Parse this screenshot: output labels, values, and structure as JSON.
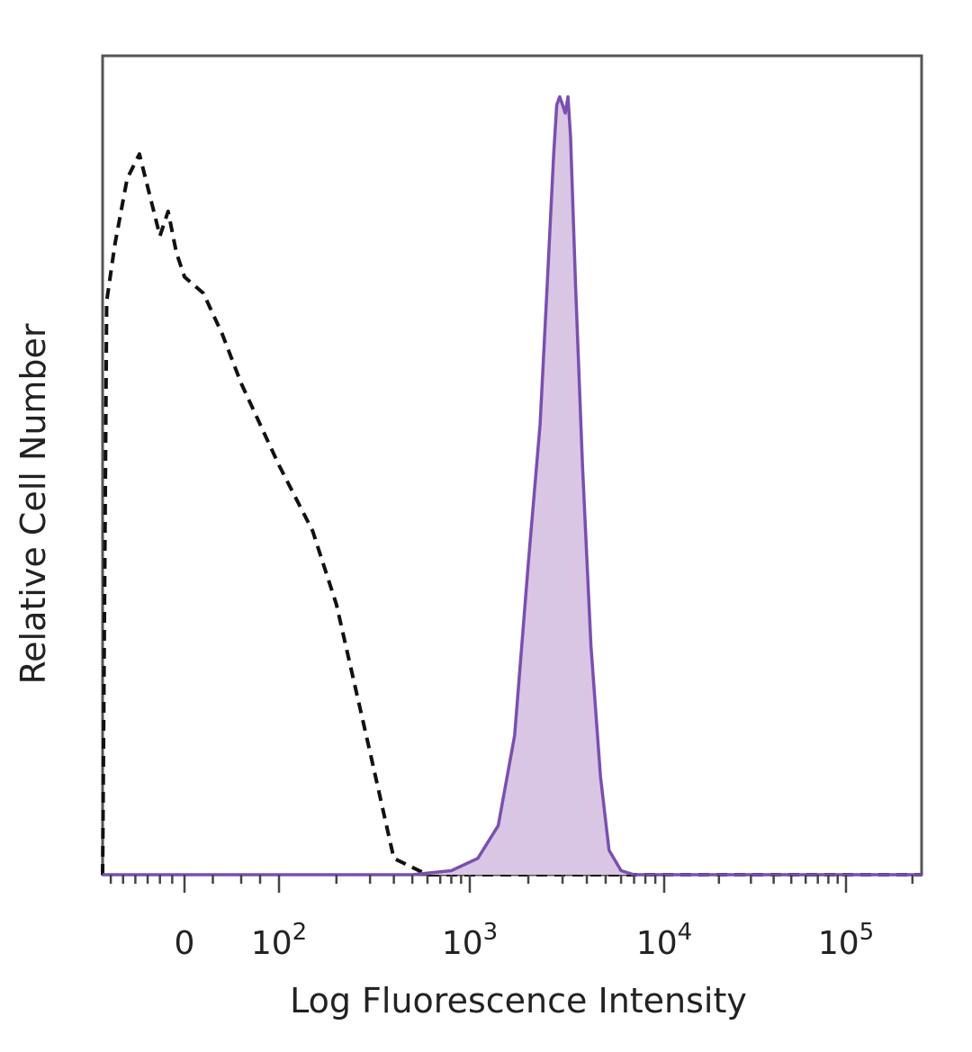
{
  "chart_data": {
    "type": "area",
    "title": "",
    "xlabel": "Log Fluorescence Intensity",
    "ylabel": "Relative Cell Number",
    "x_scale": "biexponential",
    "xlim": [
      -200,
      220000
    ],
    "ylim": [
      0,
      100
    ],
    "grid": false,
    "legend": "none",
    "x_ticks": [
      {
        "value": 0,
        "label": "0"
      },
      {
        "value": 100,
        "base": "10",
        "exp": "2"
      },
      {
        "value": 1000,
        "base": "10",
        "exp": "3"
      },
      {
        "value": 10000,
        "base": "10",
        "exp": "4"
      },
      {
        "value": 100000,
        "base": "10",
        "exp": "5"
      }
    ],
    "series": [
      {
        "style": "dashed",
        "color": "#111111",
        "fill": false,
        "x": [
          -200,
          -190,
          -170,
          -140,
          -110,
          -80,
          -60,
          -40,
          -20,
          0,
          20,
          40,
          60,
          80,
          100,
          150,
          200,
          300,
          400,
          600,
          1000,
          3000,
          10000,
          100000,
          220000
        ],
        "y": [
          0,
          70,
          77,
          85,
          88,
          82,
          78,
          81,
          76,
          73,
          71,
          66,
          60,
          55,
          50,
          42,
          33,
          15,
          2,
          0,
          0,
          0,
          0,
          0,
          0
        ]
      },
      {
        "style": "solid",
        "color": "#7a4fb0",
        "fill": "#d9c6e4",
        "x": [
          -200,
          200,
          500,
          800,
          1100,
          1400,
          1700,
          2000,
          2300,
          2500,
          2700,
          2800,
          2900,
          3000,
          3100,
          3200,
          3300,
          3500,
          3800,
          4200,
          4700,
          5200,
          6000,
          7000,
          10000,
          100000,
          220000
        ],
        "y": [
          0,
          0,
          0,
          0.5,
          2,
          6,
          17,
          38,
          55,
          72,
          88,
          94,
          95,
          94,
          93,
          95,
          90,
          72,
          50,
          28,
          12,
          3,
          0.5,
          0,
          0,
          0,
          0
        ]
      }
    ]
  }
}
